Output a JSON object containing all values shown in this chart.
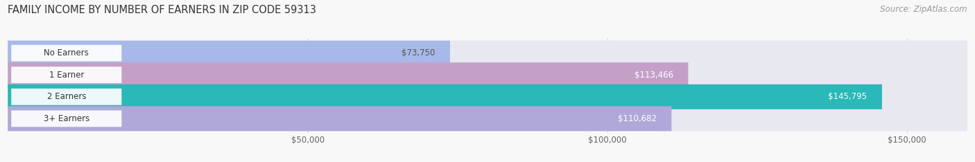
{
  "title": "FAMILY INCOME BY NUMBER OF EARNERS IN ZIP CODE 59313",
  "source": "Source: ZipAtlas.com",
  "categories": [
    "No Earners",
    "1 Earner",
    "2 Earners",
    "3+ Earners"
  ],
  "values": [
    73750,
    113466,
    145795,
    110682
  ],
  "bar_colors": [
    "#a8b8e8",
    "#c4a0c8",
    "#2ab8b8",
    "#b0a8d8"
  ],
  "bar_bg_color": "#e8e8f0",
  "label_colors": [
    "#555555",
    "#ffffff",
    "#ffffff",
    "#ffffff"
  ],
  "xmax": 160000,
  "tick_values": [
    50000,
    100000,
    150000
  ],
  "tick_labels": [
    "$50,000",
    "$100,000",
    "$150,000"
  ],
  "value_labels": [
    "$73,750",
    "$113,466",
    "$145,795",
    "$110,682"
  ],
  "background_color": "#f8f8f8",
  "title_fontsize": 10.5,
  "source_fontsize": 8.5
}
